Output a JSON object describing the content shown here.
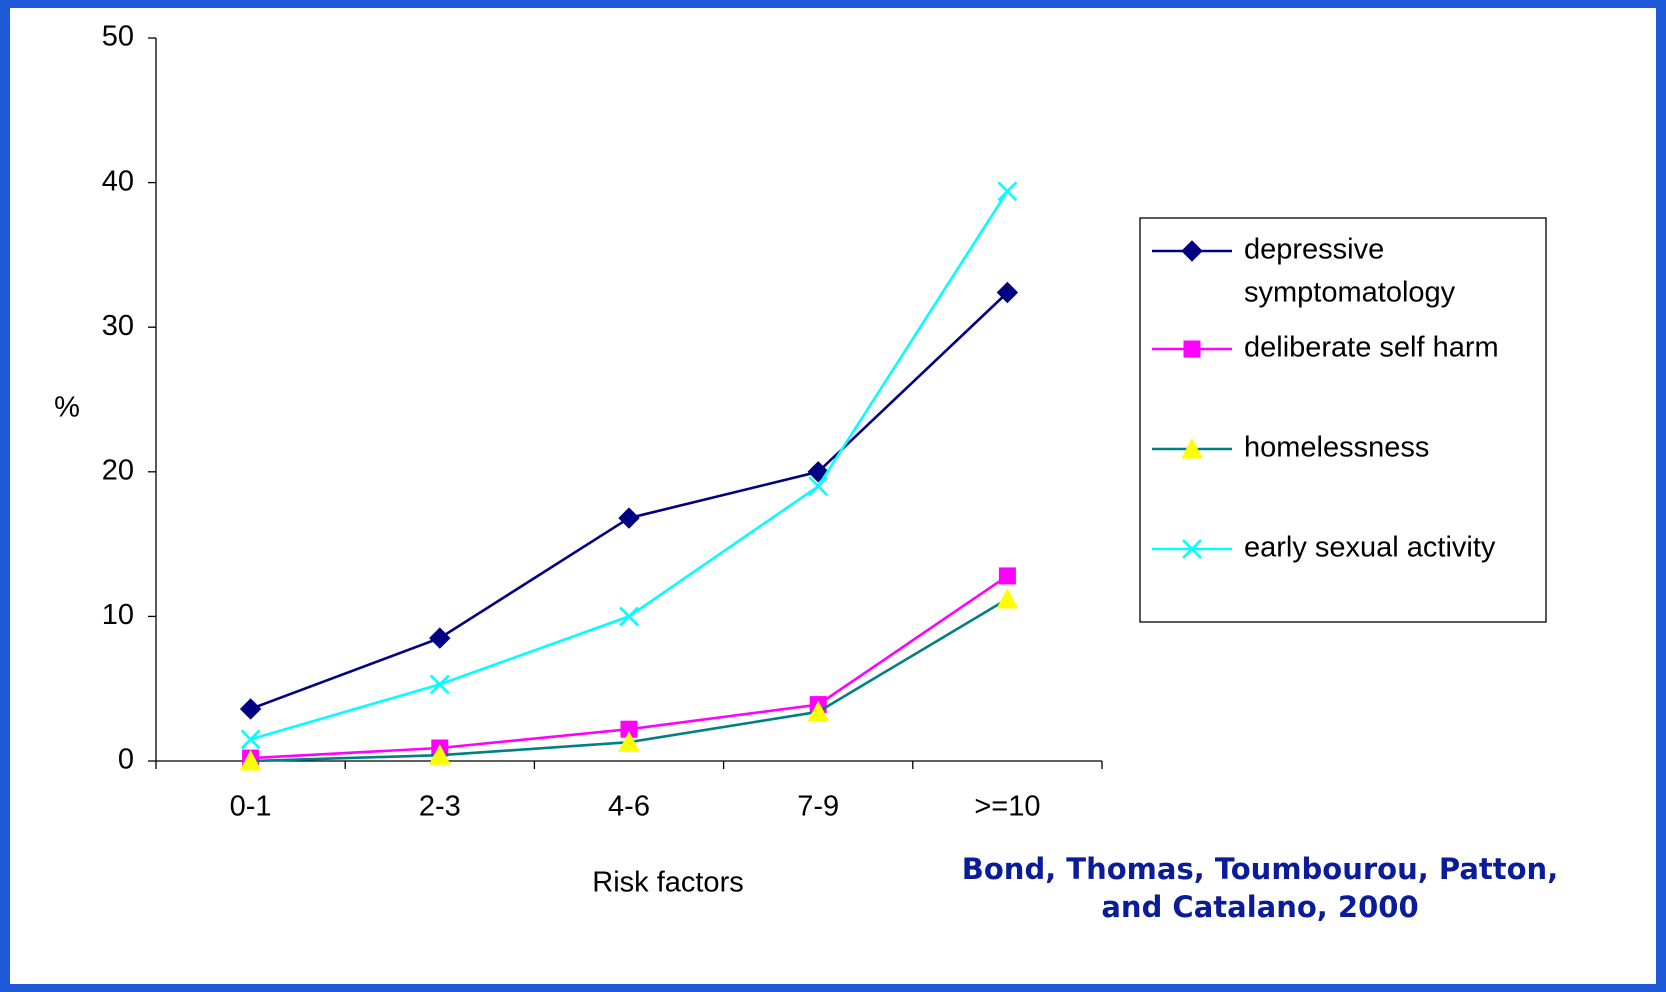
{
  "chart_data": {
    "type": "line",
    "categories": [
      "0-1",
      "2-3",
      "4-6",
      "7-9",
      ">=10"
    ],
    "xlabel": "Risk factors",
    "ylabel": "%",
    "ylim": [
      0,
      50
    ],
    "yticks": [
      "0",
      "10",
      "20",
      "30",
      "40",
      "50"
    ],
    "grid": false,
    "legend_position": "right",
    "series": [
      {
        "key": "depressive",
        "name_lines": [
          "depressive",
          "symptomatology"
        ],
        "values": [
          3.6,
          8.5,
          16.8,
          20.0,
          32.4
        ],
        "color": "#000080",
        "marker": "diamond"
      },
      {
        "key": "selfharm",
        "name_lines": [
          "deliberate self harm"
        ],
        "values": [
          0.2,
          0.9,
          2.2,
          3.9,
          12.8
        ],
        "color": "#ff00ff",
        "marker": "square",
        "marker_color": "#ff00ff"
      },
      {
        "key": "homeless",
        "name_lines": [
          "homelessness"
        ],
        "values": [
          0.0,
          0.4,
          1.3,
          3.4,
          11.2
        ],
        "color": "#008080",
        "marker": "triangle",
        "marker_color": "#ffff00"
      },
      {
        "key": "sexual",
        "name_lines": [
          "early sexual activity"
        ],
        "values": [
          1.5,
          5.3,
          10.0,
          19.0,
          39.4
        ],
        "color": "#00ffff",
        "marker": "x"
      }
    ]
  },
  "citation": {
    "line1": "Bond, Thomas,  Toumbourou, Patton,",
    "line2": "and Catalano, 2000"
  }
}
